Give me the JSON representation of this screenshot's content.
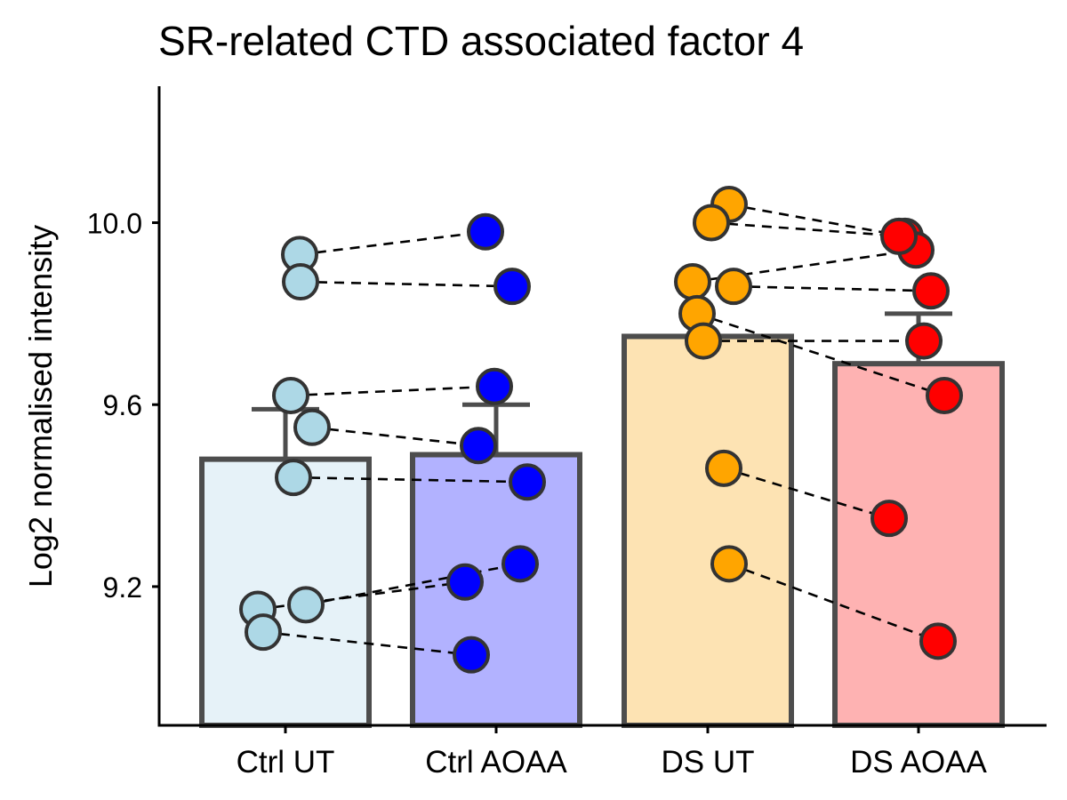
{
  "chart_data": {
    "type": "bar",
    "title": "SR-related CTD associated factor 4",
    "ylabel": "Log2 normalised intensity",
    "xlabel": "",
    "ylim": [
      8.895,
      10.3
    ],
    "yticks": [
      9.2,
      9.6,
      10.0
    ],
    "ytick_labels": [
      "9.2",
      "9.6",
      "10.0"
    ],
    "grid": false,
    "legend": "none",
    "categories": [
      "Ctrl UT",
      "Ctrl AOAA",
      "DS UT",
      "DS AOAA"
    ],
    "values": [
      9.48,
      9.49,
      9.75,
      9.69
    ],
    "error_upper": [
      9.59,
      9.6,
      9.75,
      9.8
    ],
    "bar_fill": [
      "#e6f2f8",
      "#b2b2ff",
      "#fde3b3",
      "#feb2b2"
    ],
    "point_fill": [
      "#add8e6",
      "#0000ff",
      "#ffa500",
      "#ff0000"
    ],
    "bar_stroke": "#4d4d4d",
    "points": [
      [
        9.93,
        9.87,
        9.62,
        9.55,
        9.44,
        9.16,
        9.15,
        9.1
      ],
      [
        9.98,
        9.86,
        9.64,
        9.51,
        9.43,
        9.25,
        9.21,
        9.05
      ],
      [
        10.04,
        10.0,
        9.87,
        9.86,
        9.8,
        9.74,
        9.46,
        9.25
      ],
      [
        9.97,
        9.94,
        9.85,
        9.74,
        9.62,
        9.35,
        9.08,
        9.97
      ]
    ],
    "pairs": [
      {
        "from": [
          0,
          9.93
        ],
        "to": [
          1,
          9.98
        ]
      },
      {
        "from": [
          0,
          9.87
        ],
        "to": [
          1,
          9.86
        ]
      },
      {
        "from": [
          0,
          9.62
        ],
        "to": [
          1,
          9.64
        ]
      },
      {
        "from": [
          0,
          9.55
        ],
        "to": [
          1,
          9.51
        ]
      },
      {
        "from": [
          0,
          9.44
        ],
        "to": [
          1,
          9.43
        ]
      },
      {
        "from": [
          0,
          9.16
        ],
        "to": [
          1,
          9.25
        ]
      },
      {
        "from": [
          0,
          9.15
        ],
        "to": [
          1,
          9.21
        ]
      },
      {
        "from": [
          0,
          9.1
        ],
        "to": [
          1,
          9.05
        ]
      },
      {
        "from": [
          2,
          10.04
        ],
        "to": [
          3,
          9.97
        ]
      },
      {
        "from": [
          2,
          10.0
        ],
        "to": [
          3,
          9.97
        ]
      },
      {
        "from": [
          2,
          9.87
        ],
        "to": [
          3,
          9.94
        ]
      },
      {
        "from": [
          2,
          9.86
        ],
        "to": [
          3,
          9.85
        ]
      },
      {
        "from": [
          2,
          9.8
        ],
        "to": [
          3,
          9.62
        ]
      },
      {
        "from": [
          2,
          9.74
        ],
        "to": [
          3,
          9.74
        ]
      },
      {
        "from": [
          2,
          9.46
        ],
        "to": [
          3,
          9.35
        ]
      },
      {
        "from": [
          2,
          9.25
        ],
        "to": [
          3,
          9.08
        ]
      }
    ]
  }
}
